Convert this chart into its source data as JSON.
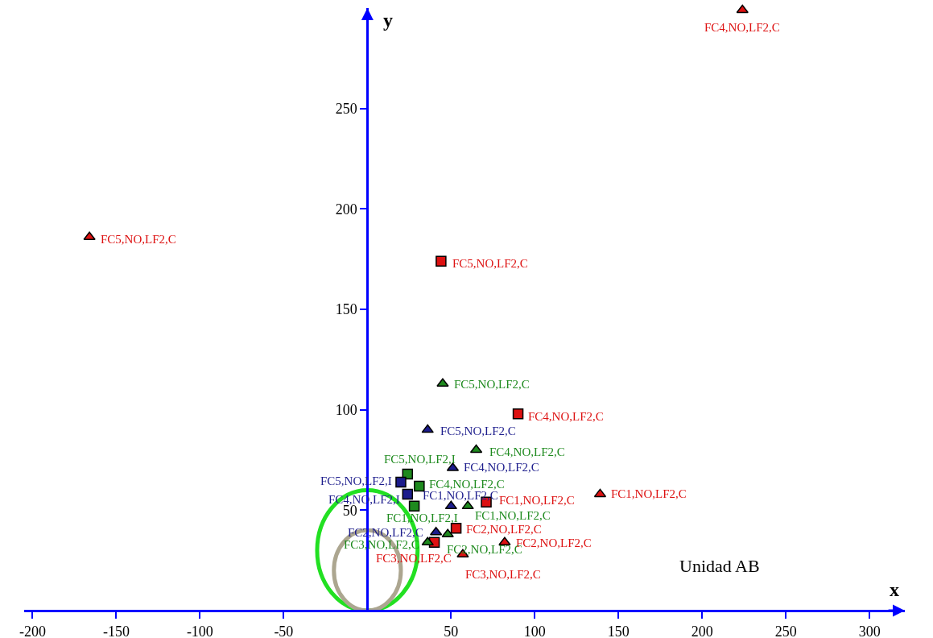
{
  "chart_data": {
    "type": "scatter",
    "xlabel": "x",
    "ylabel": "y",
    "xlim": [
      -205,
      321
    ],
    "ylim": [
      0,
      300
    ],
    "xticks": [
      -200,
      -150,
      -100,
      -50,
      50,
      100,
      150,
      200,
      250,
      300
    ],
    "yticks": [
      50,
      100,
      150,
      200,
      250
    ],
    "grid": false,
    "annotations": [
      "Unidad AB"
    ],
    "series": [
      {
        "marker": "triangle",
        "color": "#dd1111",
        "x": [
          224,
          -166,
          139,
          82,
          57
        ],
        "values": [
          299,
          186,
          58,
          34,
          28
        ],
        "value_labels": [
          "FC4,NO,LF2,C",
          "FC5,NO,LF2,C",
          "FC1,NO,LF2,C",
          "FC2,NO,LF2,C",
          "FC3,NO,LF2,C"
        ]
      },
      {
        "marker": "square",
        "color": "#dd1111",
        "x": [
          44,
          90,
          71,
          53,
          40
        ],
        "values": [
          174,
          98,
          54,
          41,
          34
        ],
        "value_labels": [
          "FC5,NO,LF2,C",
          "FC4,NO,LF2,C",
          "FC1,NO,LF2,C",
          "FC2,NO,LF2,C",
          "FC3,NO,LF2,C"
        ]
      },
      {
        "marker": "triangle",
        "color": "#1e8a1e",
        "x": [
          45,
          65,
          60,
          48,
          36
        ],
        "values": [
          113,
          80,
          52,
          38,
          34
        ],
        "value_labels": [
          "FC5,NO,LF2,C",
          "FC4,NO,LF2,C",
          "FC1,NO,LF2,C",
          "FC2,NO,LF2,C",
          "FC3,NO,LF2,C"
        ]
      },
      {
        "marker": "square",
        "color": "#1e8a1e",
        "x": [
          24,
          31,
          28
        ],
        "values": [
          68,
          62,
          52
        ],
        "value_labels": [
          "FC5,NO,LF2,I",
          "FC4,NO,LF2,C",
          "FC1,NO,LF2,I"
        ]
      },
      {
        "marker": "triangle",
        "color": "#1c1c8c",
        "x": [
          36,
          51,
          50,
          41
        ],
        "values": [
          90,
          71,
          52,
          39
        ],
        "value_labels": [
          "FC5,NO,LF2,C",
          "FC4,NO,LF2,C",
          "FC1,NO,LF2,C",
          "FC2,NO,LF2,C"
        ]
      },
      {
        "marker": "square",
        "color": "#1c1c8c",
        "x": [
          20,
          24
        ],
        "values": [
          64,
          58
        ],
        "value_labels": [
          "FC5,NO,LF2,I",
          "FC4,NO,LF2,I"
        ]
      }
    ]
  }
}
